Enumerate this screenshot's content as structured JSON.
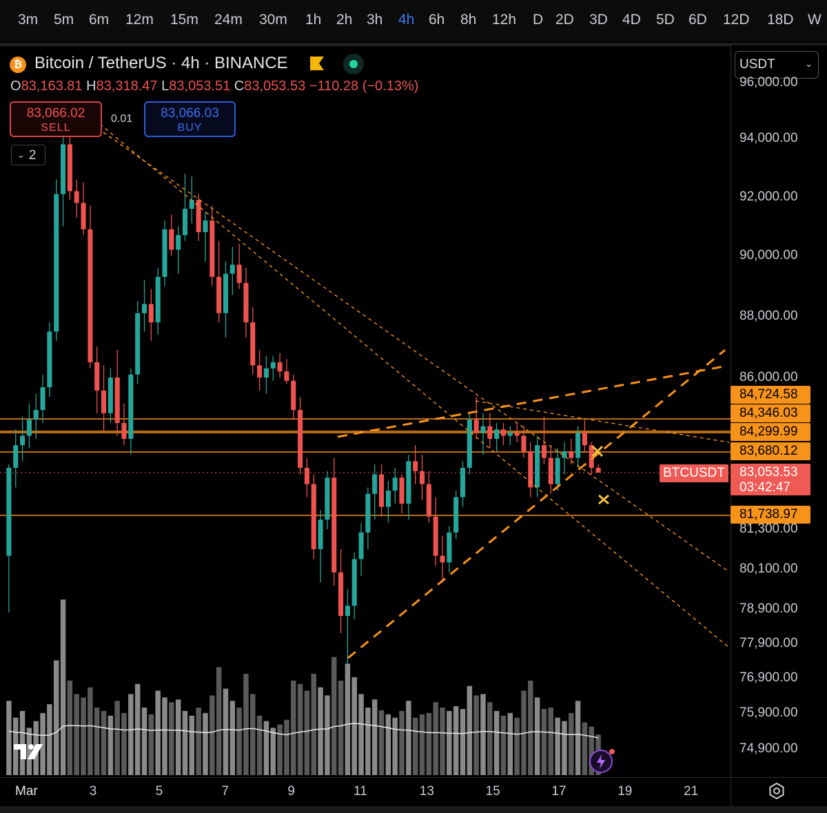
{
  "timeframes": {
    "items": [
      "3m",
      "5m",
      "6m",
      "12m",
      "15m",
      "24m",
      "30m",
      "1h",
      "2h",
      "3h",
      "4h",
      "6h",
      "8h",
      "12h",
      "D",
      "2D",
      "3D",
      "4D",
      "5D",
      "6D",
      "12D",
      "18D",
      "W"
    ],
    "active": "4h"
  },
  "header": {
    "title": "Bitcoin / TetherUS · 4h · BINANCE",
    "o_key": "O",
    "o_val": "83,163.81",
    "h_key": "H",
    "h_val": "83,318.47",
    "l_key": "L",
    "l_val": "83,053.51",
    "c_key": "C",
    "c_val": "83,053.53",
    "change": "−110.28 (−0.13%)"
  },
  "trade": {
    "sell_price": "83,066.02",
    "sell_label": "SELL",
    "spread": "0.01",
    "buy_price": "83,066.03",
    "buy_label": "BUY",
    "indicators_count": "2"
  },
  "currency_select": "USDT",
  "colors": {
    "up": "#26a69a",
    "down": "#ef5350",
    "level": "#f7931a",
    "trend": "#f7931a",
    "volume": "#9e9e9e",
    "bg": "#000000"
  },
  "chart_data": {
    "type": "candlestick",
    "symbol": "BTCUSDT",
    "interval": "4h",
    "price_axis_ticks": [
      "96,000.00",
      "94,000.00",
      "92,000.00",
      "90,000.00",
      "88,000.00",
      "86,000.00",
      "81,300.00",
      "80,100.00",
      "78,900.00",
      "77,900.00",
      "76,900.00",
      "75,900.00",
      "74,900.00"
    ],
    "price_axis_tick_values": [
      96000,
      94000,
      92000,
      90000,
      88000,
      86000,
      81300,
      80100,
      78900,
      77900,
      76900,
      75900,
      74900
    ],
    "x_axis_labels": [
      "Mar",
      "3",
      "5",
      "7",
      "9",
      "11",
      "13",
      "15",
      "17",
      "19",
      "21"
    ],
    "x_axis_days": [
      1,
      3,
      5,
      7,
      9,
      11,
      13,
      15,
      17,
      19,
      21
    ],
    "levels": [
      {
        "label": "84,724.58",
        "value": 84724.58
      },
      {
        "label": "84,346.03",
        "value": 84346.03
      },
      {
        "label": "84,299.99",
        "value": 84299.99
      },
      {
        "label": "83,680.12",
        "value": 83680.12
      },
      {
        "label": "81,738.97",
        "value": 81738.97
      }
    ],
    "current": {
      "symbol": "BTCUSDT",
      "price": "83,053.53",
      "countdown": "03:42:47",
      "value": 83053.53
    },
    "candles": [
      [
        80500,
        83300,
        78800,
        83200
      ],
      [
        83200,
        84400,
        82600,
        83900
      ],
      [
        83900,
        84800,
        83400,
        84200
      ],
      [
        84200,
        85200,
        83800,
        84700
      ],
      [
        84700,
        85500,
        84100,
        85000
      ],
      [
        85000,
        86100,
        84600,
        85700
      ],
      [
        85700,
        87800,
        85400,
        87500
      ],
      [
        87500,
        92600,
        87200,
        92100
      ],
      [
        92100,
        94500,
        91000,
        93800
      ],
      [
        93800,
        94200,
        91900,
        92200
      ],
      [
        92200,
        92600,
        91300,
        91800
      ],
      [
        91800,
        92500,
        90700,
        90900
      ],
      [
        90900,
        91700,
        86300,
        86500
      ],
      [
        86500,
        87000,
        84900,
        85600
      ],
      [
        85600,
        86400,
        84300,
        84900
      ],
      [
        84900,
        86300,
        84600,
        86000
      ],
      [
        86000,
        86900,
        84200,
        84600
      ],
      [
        84600,
        85200,
        83900,
        84100
      ],
      [
        84100,
        86300,
        83600,
        86100
      ],
      [
        86100,
        88500,
        85800,
        88100
      ],
      [
        88100,
        89200,
        87500,
        88400
      ],
      [
        88400,
        88900,
        87200,
        87800
      ],
      [
        87800,
        89600,
        87400,
        89300
      ],
      [
        89300,
        91200,
        89000,
        90900
      ],
      [
        90900,
        91400,
        90000,
        90200
      ],
      [
        90200,
        91000,
        89400,
        90700
      ],
      [
        90700,
        92800,
        90500,
        91600
      ],
      [
        91600,
        92700,
        91100,
        91900
      ],
      [
        91900,
        92100,
        90500,
        90800
      ],
      [
        90800,
        91500,
        89800,
        91200
      ],
      [
        91200,
        91700,
        89000,
        89300
      ],
      [
        89300,
        90500,
        87800,
        88100
      ],
      [
        88100,
        89800,
        87300,
        89400
      ],
      [
        89400,
        90300,
        88700,
        89700
      ],
      [
        89700,
        90400,
        88900,
        89100
      ],
      [
        89100,
        89600,
        87300,
        87800
      ],
      [
        87800,
        88300,
        86100,
        86400
      ],
      [
        86400,
        86900,
        85600,
        86000
      ],
      [
        86000,
        86700,
        85500,
        86300
      ],
      [
        86300,
        86700,
        85900,
        86500
      ],
      [
        86500,
        86800,
        86000,
        86200
      ],
      [
        86200,
        86600,
        85800,
        85900
      ],
      [
        85900,
        86100,
        84700,
        85000
      ],
      [
        85000,
        85400,
        83000,
        83200
      ],
      [
        83200,
        83500,
        82300,
        82700
      ],
      [
        82700,
        83000,
        80400,
        80700
      ],
      [
        80700,
        81900,
        79700,
        81600
      ],
      [
        81600,
        83100,
        81300,
        82900
      ],
      [
        82900,
        83500,
        79600,
        80000
      ],
      [
        80000,
        80700,
        78200,
        78700
      ],
      [
        78700,
        79500,
        77300,
        79000
      ],
      [
        79000,
        80600,
        78600,
        80400
      ],
      [
        80400,
        81500,
        79900,
        81200
      ],
      [
        81200,
        82600,
        80700,
        82400
      ],
      [
        82400,
        83300,
        81600,
        83000
      ],
      [
        83000,
        83300,
        81700,
        82000
      ],
      [
        82000,
        82800,
        81500,
        82500
      ],
      [
        82500,
        83200,
        82100,
        82900
      ],
      [
        82900,
        83000,
        81800,
        82100
      ],
      [
        82100,
        83600,
        81600,
        83400
      ],
      [
        83400,
        83900,
        82700,
        83100
      ],
      [
        83100,
        83600,
        82200,
        82700
      ],
      [
        82700,
        83100,
        81500,
        81700
      ],
      [
        81700,
        82300,
        80200,
        80500
      ],
      [
        80500,
        81100,
        79700,
        80300
      ],
      [
        80300,
        81400,
        80000,
        81200
      ],
      [
        81200,
        82500,
        81000,
        82300
      ],
      [
        82300,
        83400,
        82000,
        83200
      ],
      [
        83200,
        84900,
        83000,
        84700
      ],
      [
        84700,
        85400,
        84100,
        84300
      ],
      [
        84300,
        84900,
        83600,
        84500
      ],
      [
        84500,
        84900,
        83800,
        84100
      ],
      [
        84100,
        84600,
        83700,
        84400
      ],
      [
        84400,
        84600,
        83900,
        84200
      ],
      [
        84200,
        84500,
        83900,
        84300
      ],
      [
        84300,
        84600,
        84000,
        84200
      ],
      [
        84200,
        84500,
        83500,
        83700
      ],
      [
        83700,
        84000,
        82300,
        82600
      ],
      [
        82600,
        84200,
        82300,
        83900
      ],
      [
        83900,
        84800,
        83300,
        83500
      ],
      [
        83500,
        83900,
        82400,
        82700
      ],
      [
        82700,
        83800,
        82500,
        83500
      ],
      [
        83500,
        84000,
        83000,
        83700
      ],
      [
        83700,
        84100,
        83300,
        83500
      ],
      [
        83500,
        84500,
        83200,
        84300
      ],
      [
        84300,
        84700,
        83700,
        83900
      ],
      [
        83900,
        84000,
        83000,
        83200
      ],
      [
        83200,
        83300,
        83050,
        83053
      ]
    ],
    "volume_scale": "relative"
  }
}
